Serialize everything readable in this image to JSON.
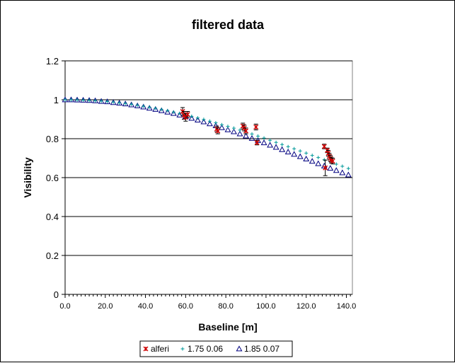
{
  "chart_data": {
    "type": "scatter",
    "title": "filtered data",
    "xlabel": "Baseline [m]",
    "ylabel": "Visibility",
    "xlim": [
      0,
      143
    ],
    "ylim": [
      0,
      1.2
    ],
    "y_ticks": [
      "0",
      "0.2",
      "0.4",
      "0.6",
      "0.8",
      "1",
      "1.2"
    ],
    "x_ticks": [
      "0.0",
      "20.0",
      "40.0",
      "60.0",
      "80.0",
      "100.0",
      "120.0",
      "140.0"
    ],
    "grid": "horizontal",
    "legend_position": "bottom",
    "series": [
      {
        "name": "alferi",
        "marker": "asterisk",
        "color": "#cc0000",
        "points": [
          {
            "x": 58.5,
            "y": 0.94,
            "err": 0.02
          },
          {
            "x": 59.2,
            "y": 0.92,
            "err": 0.02
          },
          {
            "x": 60.0,
            "y": 0.91,
            "err": 0.02
          },
          {
            "x": 61.0,
            "y": 0.925,
            "err": 0.015
          },
          {
            "x": 75.5,
            "y": 0.85,
            "err": 0.015
          },
          {
            "x": 76.0,
            "y": 0.84,
            "err": 0.015
          },
          {
            "x": 88.5,
            "y": 0.865,
            "err": 0.015
          },
          {
            "x": 89.2,
            "y": 0.855,
            "err": 0.015
          },
          {
            "x": 90.0,
            "y": 0.84,
            "err": 0.015
          },
          {
            "x": 95.0,
            "y": 0.86,
            "err": 0.015
          },
          {
            "x": 95.5,
            "y": 0.78,
            "err": 0.012
          },
          {
            "x": 129.0,
            "y": 0.76,
            "err": 0.012
          },
          {
            "x": 129.5,
            "y": 0.65,
            "err": 0.04
          },
          {
            "x": 130.5,
            "y": 0.74,
            "err": 0.012
          },
          {
            "x": 131.0,
            "y": 0.725,
            "err": 0.015
          },
          {
            "x": 131.5,
            "y": 0.71,
            "err": 0.015
          },
          {
            "x": 132.0,
            "y": 0.7,
            "err": 0.015
          },
          {
            "x": 132.5,
            "y": 0.69,
            "err": 0.015
          },
          {
            "x": 133.2,
            "y": 0.685,
            "err": 0.015
          }
        ]
      },
      {
        "name": "1.75 0.06",
        "marker": "plus",
        "color": "#009999",
        "model": {
          "theta_mas": 1.75,
          "limb": 0.06
        },
        "x": [
          0,
          3,
          6,
          9,
          12,
          15,
          18,
          21,
          24,
          27,
          30,
          33,
          36,
          39,
          42,
          45,
          48,
          51,
          54,
          57,
          60,
          63,
          66,
          69,
          72,
          75,
          78,
          81,
          84,
          87,
          90,
          93,
          96,
          99,
          102,
          105,
          108,
          111,
          114,
          117,
          120,
          123,
          126,
          129,
          132,
          135,
          138,
          141
        ],
        "y": [
          1.0,
          1.0,
          0.999,
          0.998,
          0.997,
          0.995,
          0.993,
          0.991,
          0.988,
          0.984,
          0.981,
          0.977,
          0.972,
          0.967,
          0.962,
          0.956,
          0.95,
          0.944,
          0.937,
          0.93,
          0.923,
          0.915,
          0.907,
          0.899,
          0.89,
          0.882,
          0.872,
          0.863,
          0.854,
          0.844,
          0.834,
          0.824,
          0.813,
          0.803,
          0.792,
          0.781,
          0.77,
          0.759,
          0.748,
          0.737,
          0.726,
          0.714,
          0.703,
          0.692,
          0.681,
          0.669,
          0.658,
          0.647
        ]
      },
      {
        "name": "1.85 0.07",
        "marker": "triangle",
        "color": "#000080",
        "model": {
          "theta_mas": 1.85,
          "limb": 0.07
        },
        "x": [
          0,
          3,
          6,
          9,
          12,
          15,
          18,
          21,
          24,
          27,
          30,
          33,
          36,
          39,
          42,
          45,
          48,
          51,
          54,
          57,
          60,
          63,
          66,
          69,
          72,
          75,
          78,
          81,
          84,
          87,
          90,
          93,
          96,
          99,
          102,
          105,
          108,
          111,
          114,
          117,
          120,
          123,
          126,
          129,
          132,
          135,
          138,
          141
        ],
        "y": [
          1.0,
          1.0,
          0.999,
          0.998,
          0.997,
          0.995,
          0.992,
          0.99,
          0.986,
          0.983,
          0.979,
          0.974,
          0.969,
          0.963,
          0.957,
          0.951,
          0.944,
          0.937,
          0.93,
          0.922,
          0.914,
          0.905,
          0.896,
          0.887,
          0.877,
          0.867,
          0.857,
          0.846,
          0.836,
          0.825,
          0.814,
          0.802,
          0.791,
          0.779,
          0.767,
          0.756,
          0.744,
          0.732,
          0.72,
          0.708,
          0.696,
          0.684,
          0.672,
          0.66,
          0.648,
          0.637,
          0.625,
          0.614
        ]
      }
    ]
  }
}
